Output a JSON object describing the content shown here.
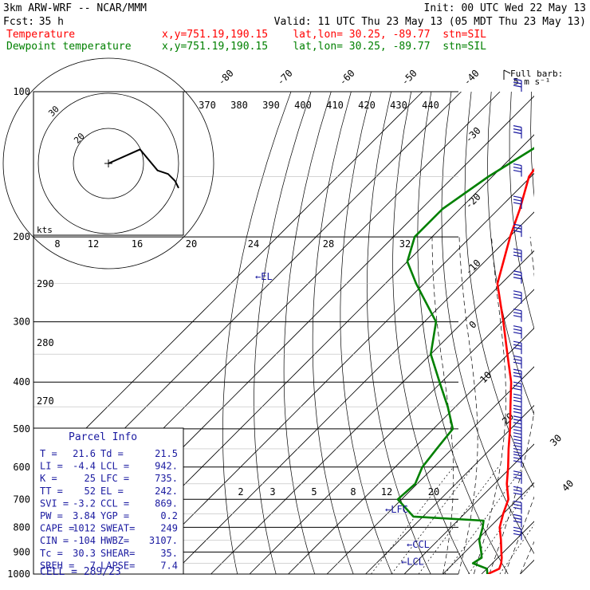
{
  "header": {
    "model": "3km ARW-WRF -- NCAR/MMM",
    "init": "Init: 00 UTC Wed 22 May 13",
    "fcst_label": "Fcst:",
    "fcst_value": "35 h",
    "valid": "Valid: 11 UTC Thu 23 May 13 (05 MDT Thu 23 May 13)"
  },
  "legend": [
    {
      "label": "Temperature",
      "info": "x,y=751.19,190.15    lat,lon= 30.25, -89.77  stn=SIL",
      "color": "#ff0000"
    },
    {
      "label": "Dewpoint temperature",
      "info": "x,y=751.19,190.15    lat,lon= 30.25, -89.77  stn=SIL",
      "color": "#008000"
    }
  ],
  "barb_legend": {
    "title": "Full barb:",
    "value": "5 m s⁻¹"
  },
  "chart_data": {
    "type": "line",
    "diagram": "skew-T log-P",
    "pressure_ticks": [
      100,
      200,
      300,
      400,
      500,
      600,
      700,
      800,
      900,
      1000
    ],
    "isotherm_labels": [
      "-80",
      "-70",
      "-60",
      "-50",
      "-40",
      "-30",
      "-20",
      "-10",
      "0",
      "10",
      "20",
      "30",
      "40"
    ],
    "theta_labels": [
      "370",
      "380",
      "390",
      "400",
      "410",
      "420",
      "430",
      "440"
    ],
    "theta_left_labels": [
      "290",
      "280",
      "270"
    ],
    "mixing_ratio_labels": [
      "2",
      "3",
      "5",
      "8",
      "12",
      "20"
    ],
    "hodograph": {
      "ring_labels": [
        "30",
        "20"
      ],
      "speed_axis_label": "kts",
      "speed_axis": [
        "8",
        "12",
        "16",
        "20",
        "24",
        "28",
        "32"
      ],
      "curve": [
        [
          9,
          4
        ],
        [
          14,
          -2
        ],
        [
          17,
          -3
        ],
        [
          19,
          -5
        ],
        [
          20,
          -7
        ]
      ]
    },
    "series": [
      {
        "name": "Temperature",
        "color": "#ff0000",
        "points": [
          [
            1000,
            21.6
          ],
          [
            975,
            23.2
          ],
          [
            950,
            22.3
          ],
          [
            925,
            21.0
          ],
          [
            900,
            19.4
          ],
          [
            850,
            16.2
          ],
          [
            800,
            12.6
          ],
          [
            750,
            10.0
          ],
          [
            700,
            7.6
          ],
          [
            650,
            3.2
          ],
          [
            600,
            -0.8
          ],
          [
            550,
            -5.4
          ],
          [
            500,
            -10.2
          ],
          [
            450,
            -15.8
          ],
          [
            400,
            -22.0
          ],
          [
            350,
            -30.2
          ],
          [
            300,
            -39.6
          ],
          [
            250,
            -51.0
          ],
          [
            200,
            -59.8
          ],
          [
            175,
            -64.5
          ],
          [
            150,
            -70.5
          ],
          [
            125,
            -73.0
          ],
          [
            100,
            -71.0
          ]
        ]
      },
      {
        "name": "Dewpoint temperature",
        "color": "#008000",
        "points": [
          [
            1000,
            21.5
          ],
          [
            975,
            20.0
          ],
          [
            950,
            15.0
          ],
          [
            925,
            15.8
          ],
          [
            900,
            14.2
          ],
          [
            850,
            10.6
          ],
          [
            800,
            8.2
          ],
          [
            775,
            6.7
          ],
          [
            760,
            -12.5
          ],
          [
            700,
            -21.0
          ],
          [
            650,
            -20.5
          ],
          [
            600,
            -23.0
          ],
          [
            550,
            -24.0
          ],
          [
            500,
            -25.0
          ],
          [
            450,
            -32.0
          ],
          [
            400,
            -40.5
          ],
          [
            350,
            -50.0
          ],
          [
            300,
            -57.0
          ],
          [
            250,
            -72.0
          ],
          [
            225,
            -80.0
          ],
          [
            200,
            -84.5
          ],
          [
            175,
            -84.5
          ],
          [
            150,
            -81.0
          ],
          [
            125,
            -75.0
          ],
          [
            110,
            -72.0
          ],
          [
            100,
            -70.0
          ]
        ]
      }
    ],
    "level_markers": [
      {
        "label": "←EL",
        "p": 242
      },
      {
        "label": "←LFC",
        "p": 735
      },
      {
        "label": "←CCL",
        "p": 869
      },
      {
        "label": "←LCL",
        "p": 942
      }
    ],
    "wind_profile_pressures": [
      100,
      125,
      150,
      175,
      200,
      225,
      250,
      275,
      300,
      325,
      350,
      375,
      400,
      425,
      450,
      475,
      500,
      525,
      550,
      575,
      600,
      650,
      700,
      750,
      800,
      850,
      900,
      925,
      950,
      975,
      1000
    ]
  },
  "parcel_info": {
    "title": "Parcel Info",
    "rows": [
      [
        "T  =",
        "21.6",
        "Td =",
        "21.5"
      ],
      [
        "LI =",
        "-4.4",
        "LCL =",
        "942."
      ],
      [
        "K  =",
        "25",
        "LFC =",
        "735."
      ],
      [
        "TT =",
        "52",
        "EL =",
        "242."
      ],
      [
        "SVI =",
        "-3.2",
        "CCL =",
        "869."
      ],
      [
        "PW =",
        "3.84",
        "YGP =",
        "0.2"
      ],
      [
        "CAPE =",
        "1012",
        "SWEAT=",
        "249"
      ],
      [
        "CIN =",
        "-104",
        "HWBZ=",
        "3107."
      ],
      [
        "Tc =",
        "30.3",
        "SHEAR=",
        "35."
      ],
      [
        "SREH =",
        "7",
        "LAPSE=",
        "7.4"
      ]
    ],
    "cell": "CELL = 289/23"
  }
}
